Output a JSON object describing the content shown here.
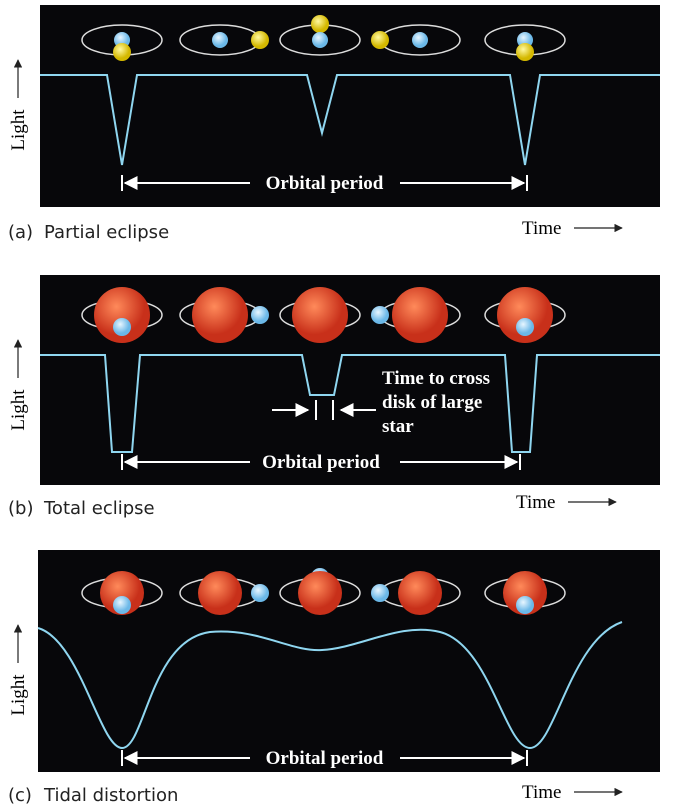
{
  "panels": [
    {
      "label": "(a)",
      "caption": "Partial eclipse",
      "y_axis": "Light",
      "x_axis": "Time",
      "period_label": "Orbital period"
    },
    {
      "label": "(b)",
      "caption": "Total eclipse",
      "y_axis": "Light",
      "x_axis": "Time",
      "period_label": "Orbital period",
      "annotation": [
        "Time to cross",
        "disk of large",
        "star"
      ]
    },
    {
      "label": "(c)",
      "caption": "Tidal distortion",
      "y_axis": "Light",
      "x_axis": "Time",
      "period_label": "Orbital period"
    }
  ]
}
